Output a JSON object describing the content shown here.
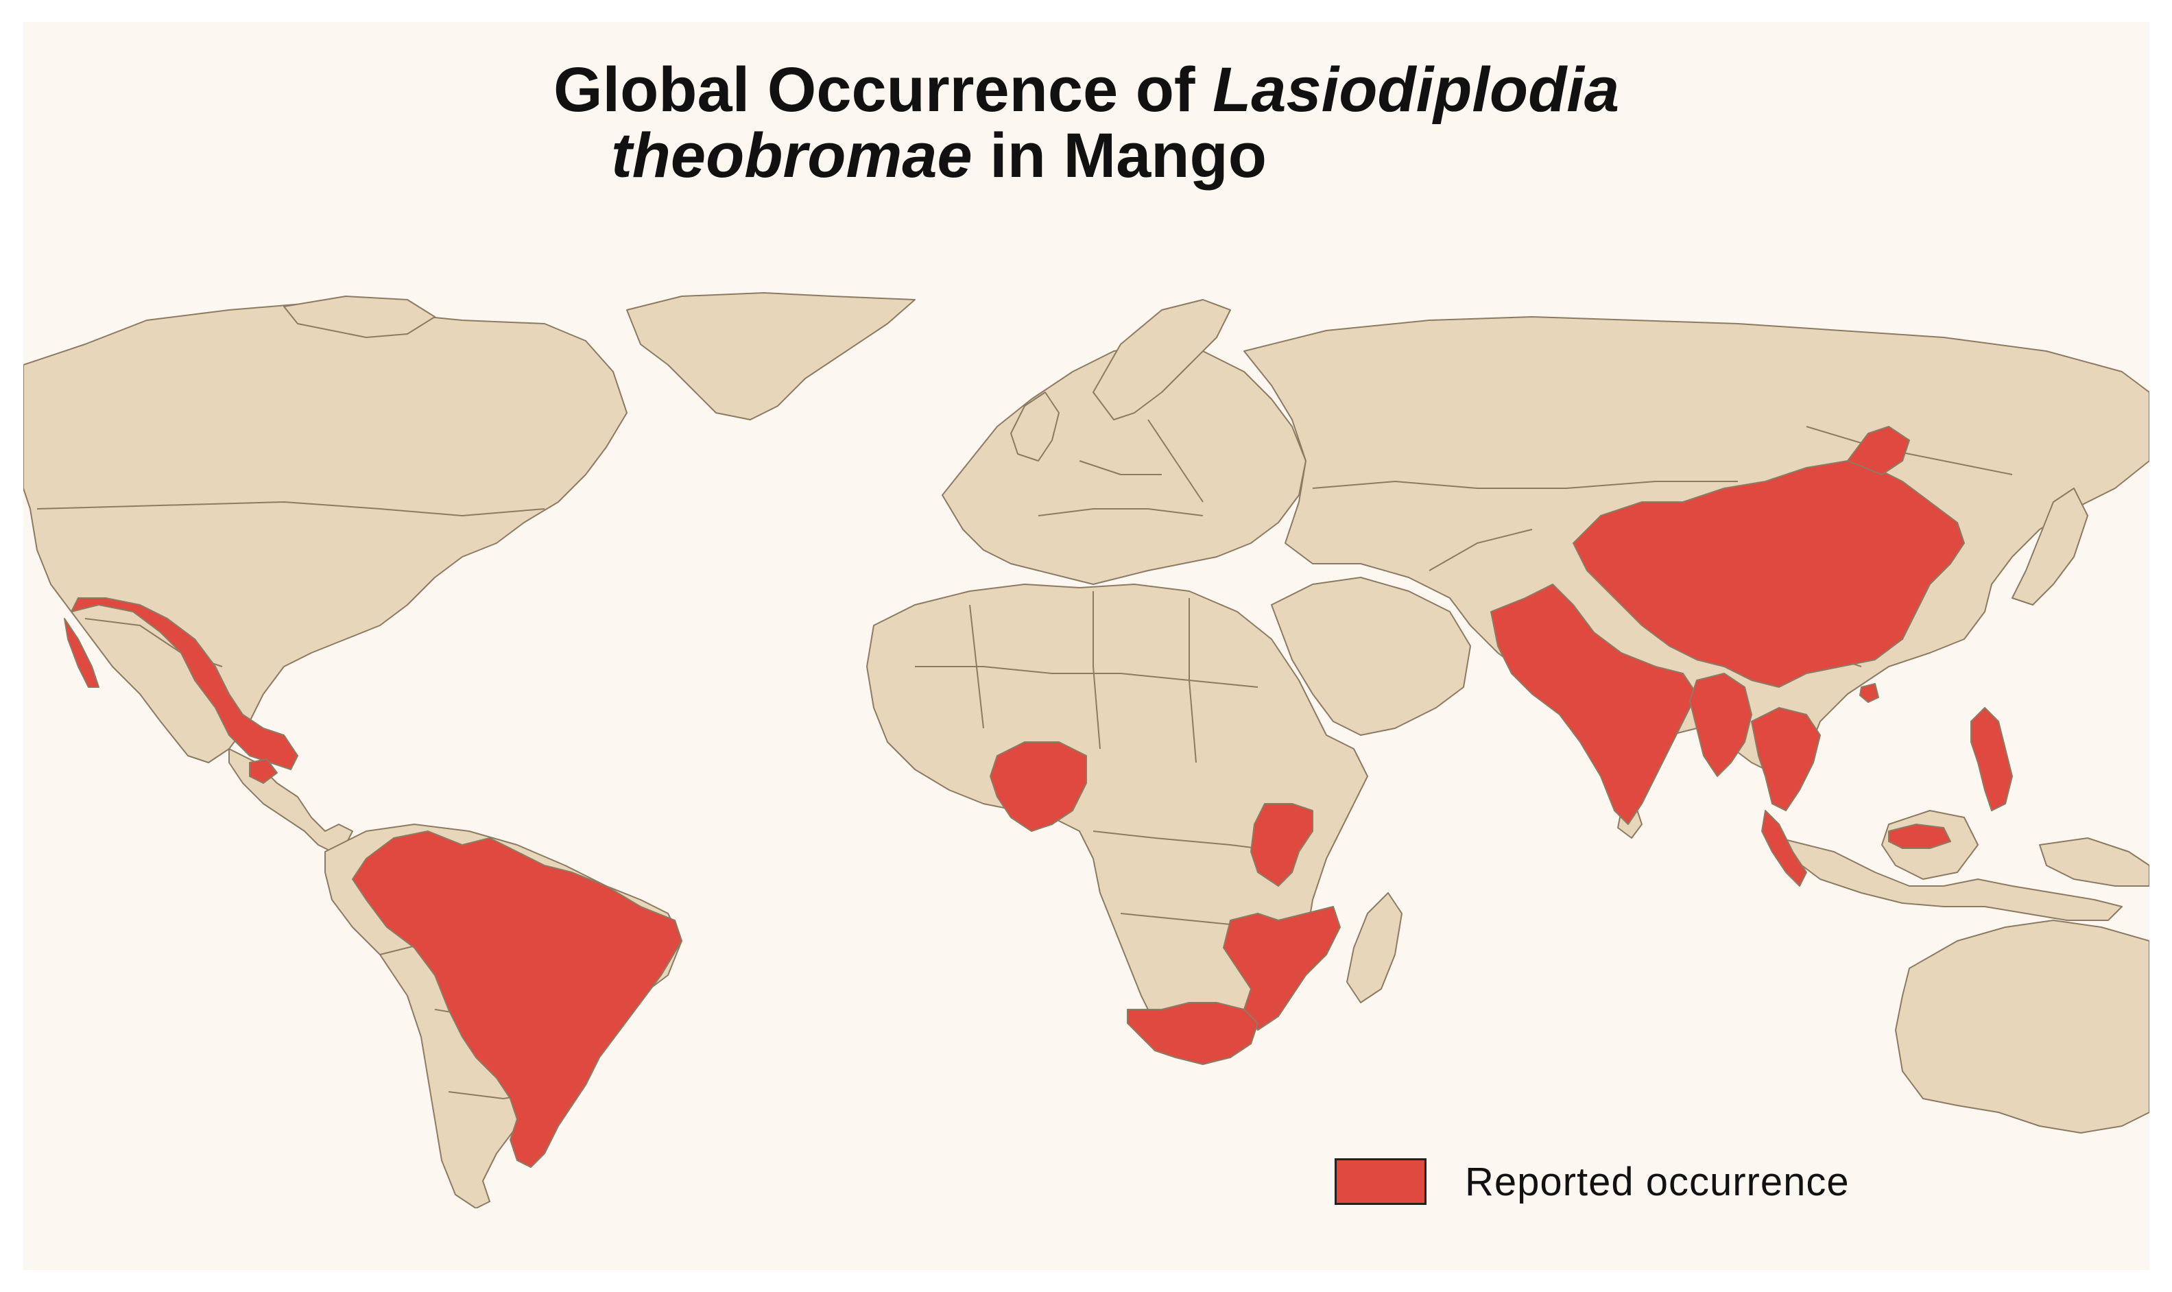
{
  "title": {
    "line1_plain": "Global Occurrence of ",
    "line1_italic": "Lasiodiplodia",
    "line2_italic": "theobromae",
    "line2_plain": " in Mango"
  },
  "legend": {
    "label": "Reported occurrence"
  },
  "colors": {
    "background": "#fcf7f0",
    "land": "#e8d6bb",
    "border": "#8c7a62",
    "occurrence": "#e0493f",
    "water": "#fcf7f0"
  },
  "reported_countries": [
    "Mexico",
    "Guatemala",
    "Brazil",
    "Nigeria",
    "Kenya",
    "Mozambique",
    "Zimbabwe",
    "South Africa",
    "Pakistan",
    "India",
    "China",
    "Bangladesh",
    "Myanmar",
    "Thailand",
    "Vietnam",
    "Malaysia",
    "Philippines"
  ]
}
